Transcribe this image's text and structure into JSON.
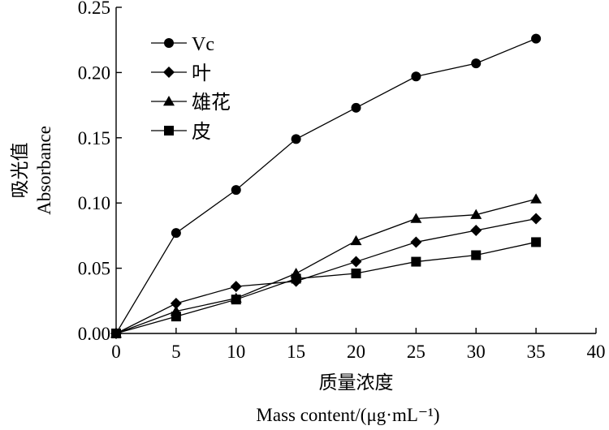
{
  "chart_data": {
    "type": "line",
    "xlabel_cn": "质量浓度",
    "xlabel_en": "Mass content/(μg·mL⁻¹)",
    "ylabel_cn": "吸光值",
    "ylabel_en": "Absorbance",
    "xlim": [
      0,
      40
    ],
    "ylim": [
      0,
      0.25
    ],
    "xticks": [
      "0",
      "5",
      "10",
      "15",
      "20",
      "25",
      "30",
      "35",
      "40"
    ],
    "yticks": [
      "0.00",
      "0.05",
      "0.10",
      "0.15",
      "0.20",
      "0.25"
    ],
    "x": [
      0,
      5,
      10,
      15,
      20,
      25,
      30,
      35
    ],
    "legend_position": "top-left",
    "series": [
      {
        "name": "Vc",
        "marker": "circle",
        "values": [
          0.0,
          0.077,
          0.11,
          0.149,
          0.173,
          0.197,
          0.207,
          0.226
        ]
      },
      {
        "name": "叶",
        "marker": "diamond",
        "values": [
          0.0,
          0.023,
          0.036,
          0.04,
          0.055,
          0.07,
          0.079,
          0.088
        ]
      },
      {
        "name": "雄花",
        "marker": "triangle",
        "values": [
          0.0,
          0.017,
          0.027,
          0.046,
          0.071,
          0.088,
          0.091,
          0.103
        ]
      },
      {
        "name": "皮",
        "marker": "square",
        "values": [
          0.0,
          0.013,
          0.026,
          0.042,
          0.046,
          0.055,
          0.06,
          0.07
        ]
      }
    ]
  }
}
